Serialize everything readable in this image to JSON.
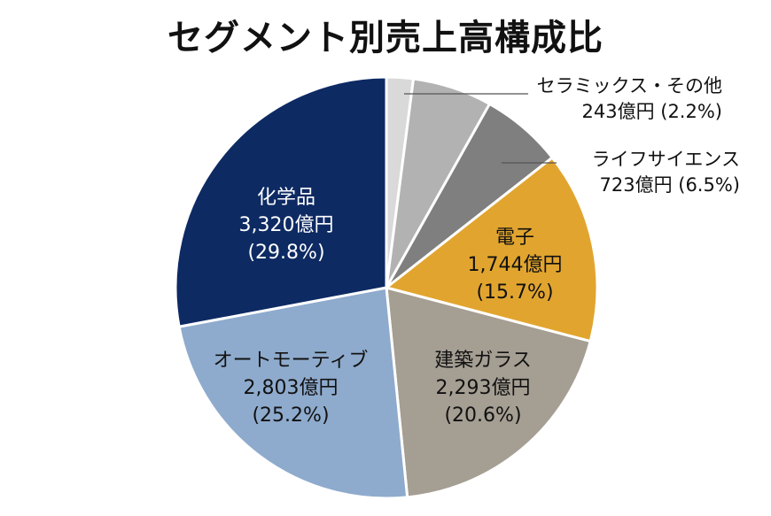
{
  "chart_data": {
    "type": "pie",
    "title": "セグメント別売上高構成比",
    "slices": [
      {
        "name": "セラミックス・その他",
        "value_text": "243億円",
        "percent_text": "(2.2%)",
        "value": 243,
        "percent": 2.2,
        "color": "#d9d9d9",
        "text_color": "#111111",
        "label_position": "outside"
      },
      {
        "name": "ライフサイエンス",
        "value_text": "723億円",
        "percent_text": "(6.5%)",
        "value": 723,
        "percent": 6.5,
        "color": "#b2b2b2",
        "text_color": "#111111",
        "label_position": "outside"
      },
      {
        "name": "",
        "value_text": "",
        "percent_text": "",
        "value": 744,
        "percent": 6.7,
        "color": "#7f7f7f",
        "text_color": "#111111",
        "label_position": "none"
      },
      {
        "name": "電子",
        "value_text": "1,744億円",
        "percent_text": "(15.7%)",
        "value": 1744,
        "percent": 15.7,
        "color": "#e1a52f",
        "text_color": "#111111",
        "label_position": "inside"
      },
      {
        "name": "建築ガラス",
        "value_text": "2,293億円",
        "percent_text": "(20.6%)",
        "value": 2293,
        "percent": 20.6,
        "color": "#a59e93",
        "text_color": "#111111",
        "label_position": "inside"
      },
      {
        "name": "オートモーティブ",
        "value_text": "2,803億円",
        "percent_text": "(25.2%)",
        "value": 2803,
        "percent": 25.2,
        "color": "#8eabcd",
        "text_color": "#111111",
        "label_position": "inside"
      },
      {
        "name": "化学品",
        "value_text": "3,320億円",
        "percent_text": "(29.8%)",
        "value": 3320,
        "percent": 29.8,
        "color": "#0d2a63",
        "text_color": "#ffffff",
        "label_position": "inside"
      }
    ],
    "start_angle_deg": 0,
    "direction": "clockwise",
    "legend": "none"
  }
}
